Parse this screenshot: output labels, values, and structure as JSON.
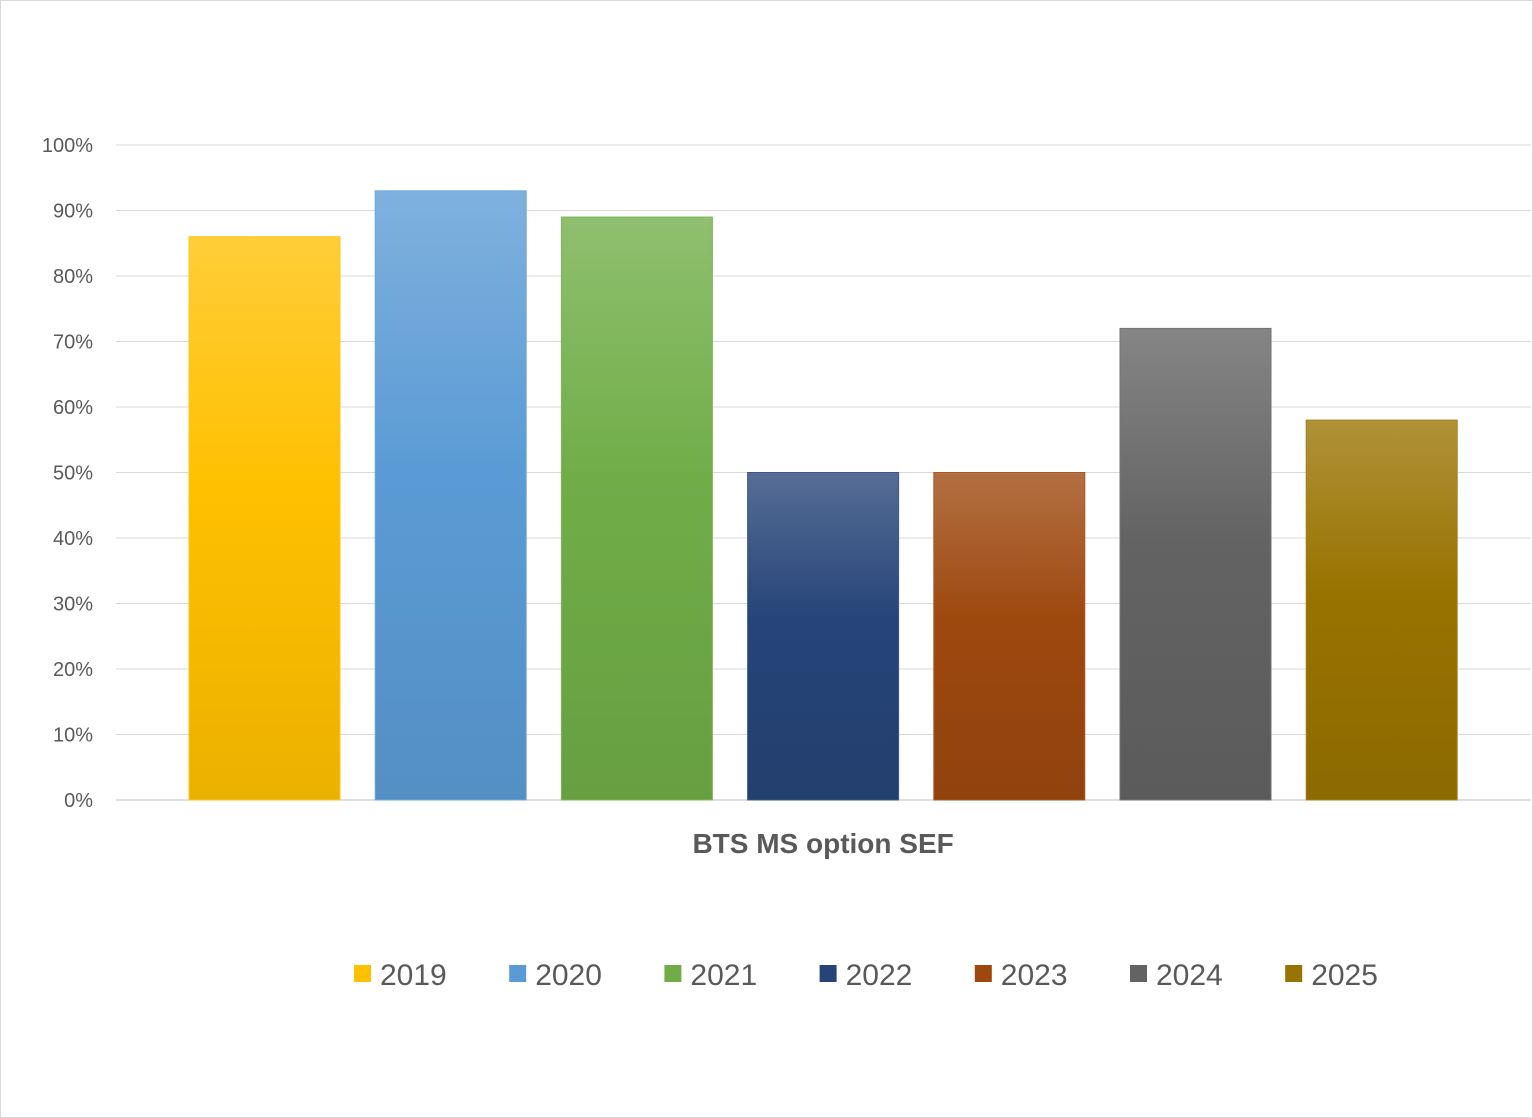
{
  "chart_data": {
    "type": "bar",
    "categories": [
      "BTS MS option SEF"
    ],
    "series": [
      {
        "name": "2019",
        "values": [
          86
        ],
        "color": "#ffc000"
      },
      {
        "name": "2020",
        "values": [
          93
        ],
        "color": "#5b9bd5"
      },
      {
        "name": "2021",
        "values": [
          89
        ],
        "color": "#70ad47"
      },
      {
        "name": "2022",
        "values": [
          50
        ],
        "color": "#264478"
      },
      {
        "name": "2023",
        "values": [
          50
        ],
        "color": "#9e480e"
      },
      {
        "name": "2024",
        "values": [
          72
        ],
        "color": "#636363"
      },
      {
        "name": "2025",
        "values": [
          58
        ],
        "color": "#997300"
      }
    ],
    "ylim": [
      0,
      100
    ],
    "yticks": [
      "0%",
      "10%",
      "20%",
      "30%",
      "40%",
      "50%",
      "60%",
      "70%",
      "80%",
      "90%",
      "100%"
    ],
    "ytick_values": [
      0,
      10,
      20,
      30,
      40,
      50,
      60,
      70,
      80,
      90,
      100
    ],
    "grid": true,
    "legend_position": "bottom"
  }
}
